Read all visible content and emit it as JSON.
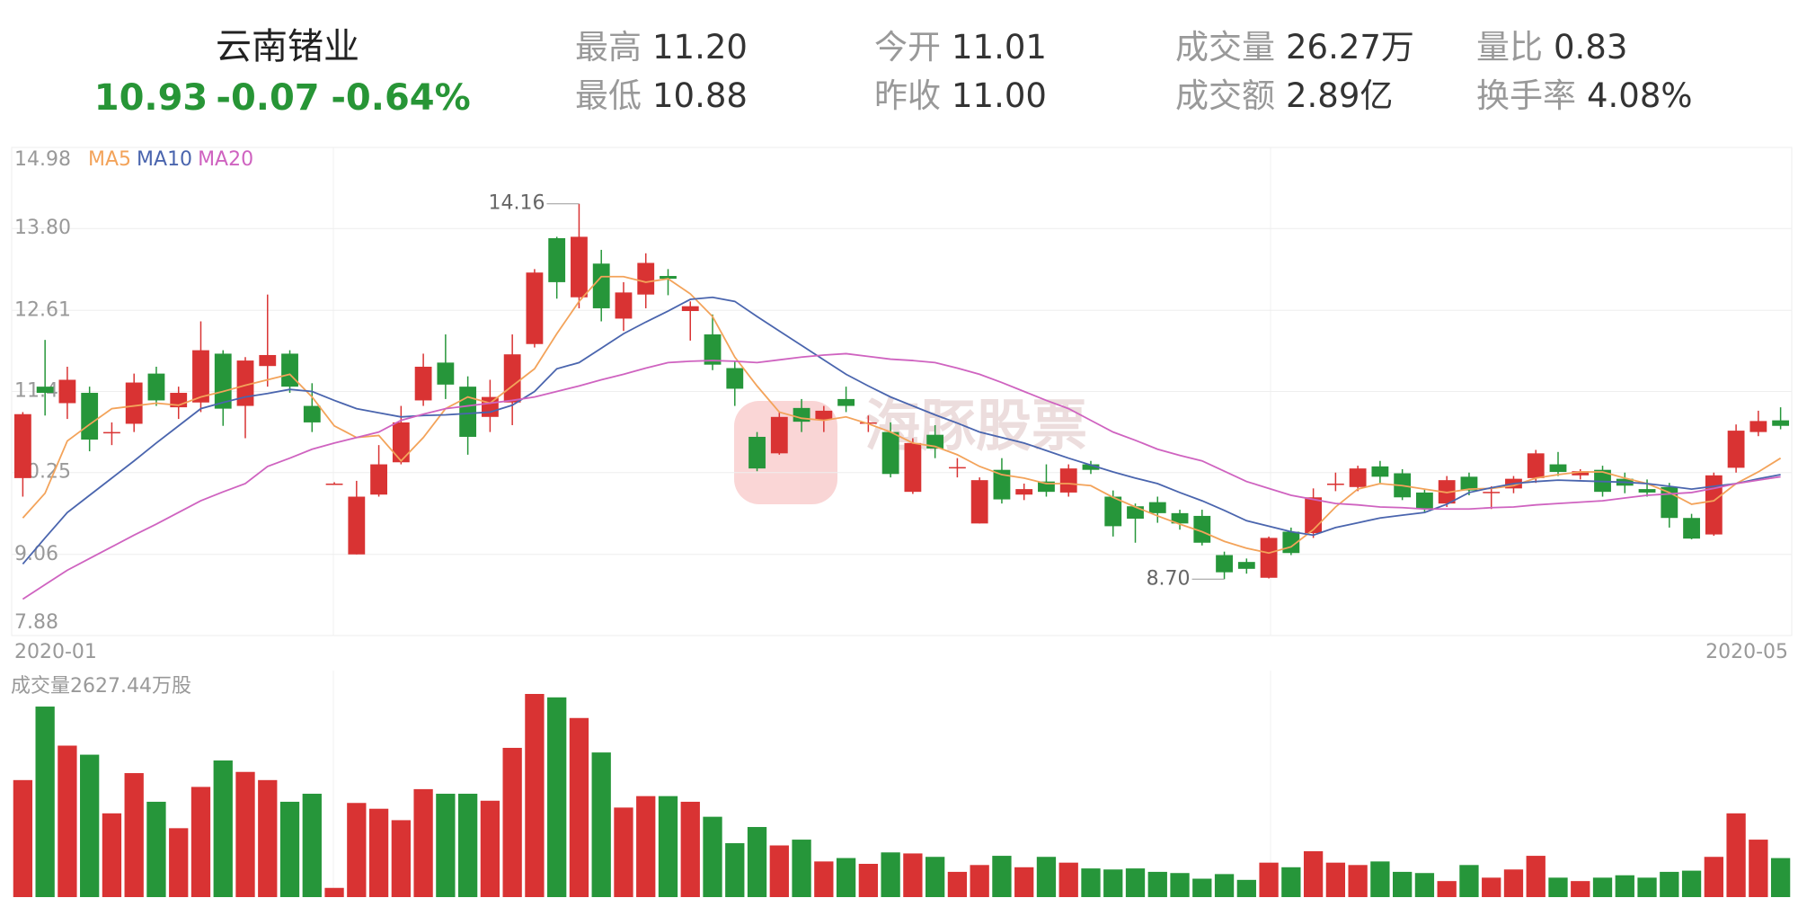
{
  "header": {
    "name": "云南锗业",
    "price": "10.93",
    "change": "-0.07",
    "change_pct": "-0.64%",
    "stats": [
      [
        {
          "label": "最高",
          "value": "11.20"
        },
        {
          "label": "今开",
          "value": "11.01"
        },
        {
          "label": "成交量",
          "value": "26.27万"
        },
        {
          "label": "量比",
          "value": "0.83"
        }
      ],
      [
        {
          "label": "最低",
          "value": "10.88"
        },
        {
          "label": "昨收",
          "value": "11.00"
        },
        {
          "label": "成交额",
          "value": "2.89亿"
        },
        {
          "label": "换手率",
          "value": "4.08%"
        }
      ]
    ]
  },
  "watermark": "海豚股票",
  "chart_data": {
    "type": "candlestick",
    "ylim": [
      7.88,
      14.98
    ],
    "yticks": [
      7.88,
      9.06,
      10.25,
      11.43,
      12.61,
      {
        "value": 13.8,
        "label": "13.80"
      },
      14.98
    ],
    "grid": true,
    "up_color": "#d93333",
    "down_color": "#26963a",
    "x_labels": [
      "2020-01",
      "2020-05"
    ],
    "high_label": "14.16",
    "low_label": "8.70",
    "volume_label": "成交量2627.44万股",
    "open": [
      10.17,
      11.5,
      11.26,
      11.41,
      10.84,
      10.96,
      11.69,
      11.2,
      11.27,
      11.98,
      11.22,
      11.8,
      11.98,
      11.22,
      10.09,
      9.06,
      9.93,
      10.4,
      11.3,
      11.85,
      11.5,
      11.06,
      11.27,
      12.12,
      13.66,
      12.8,
      13.29,
      12.49,
      12.84,
      13.11,
      12.6,
      12.26,
      11.77,
      10.77,
      10.53,
      11.19,
      11.02,
      11.32,
      10.98,
      10.84,
      9.97,
      10.8,
      10.32,
      9.51,
      10.29,
      9.93,
      10.12,
      9.96,
      10.37,
      9.9,
      9.76,
      9.82,
      9.66,
      9.62,
      9.05,
      8.95,
      8.72,
      9.39,
      9.37,
      10.07,
      10.04,
      10.34,
      10.24,
      9.96,
      9.8,
      10.19,
      9.96,
      10.02,
      10.17,
      10.37,
      10.21,
      10.29,
      10.16,
      10.01,
      10.04,
      9.59,
      9.35,
      10.32,
      10.84,
      11.01
    ],
    "high": [
      11.13,
      12.18,
      11.79,
      11.5,
      10.98,
      11.69,
      11.79,
      11.5,
      12.45,
      12.03,
      11.93,
      12.84,
      12.03,
      11.55,
      10.11,
      10.13,
      10.65,
      11.22,
      11.98,
      12.26,
      11.65,
      11.6,
      12.26,
      13.21,
      13.68,
      14.16,
      13.49,
      13.02,
      13.44,
      13.21,
      12.74,
      12.55,
      11.88,
      10.84,
      11.13,
      11.32,
      11.22,
      11.5,
      11.08,
      10.98,
      10.75,
      10.94,
      10.46,
      10.18,
      10.46,
      10.09,
      10.37,
      10.37,
      10.42,
      9.99,
      9.8,
      9.9,
      9.71,
      9.71,
      9.1,
      9.0,
      9.32,
      9.45,
      10.02,
      10.25,
      10.35,
      10.42,
      10.3,
      10.0,
      10.2,
      10.25,
      10.05,
      10.2,
      10.58,
      10.55,
      10.3,
      10.35,
      10.25,
      10.15,
      10.1,
      9.65,
      10.25,
      10.95,
      11.15,
      11.2
    ],
    "low": [
      9.9,
      11.08,
      11.03,
      10.56,
      10.65,
      10.84,
      11.22,
      11.03,
      11.13,
      10.93,
      10.75,
      11.5,
      11.41,
      10.84,
      10.07,
      9.06,
      9.9,
      10.37,
      11.22,
      11.32,
      10.51,
      10.84,
      10.94,
      12.07,
      12.78,
      12.64,
      12.45,
      12.31,
      12.64,
      12.83,
      12.17,
      11.74,
      11.22,
      10.27,
      10.51,
      10.84,
      10.84,
      11.13,
      10.84,
      10.18,
      9.94,
      10.46,
      10.18,
      9.51,
      9.8,
      9.85,
      9.9,
      9.9,
      10.23,
      9.32,
      9.23,
      9.52,
      9.42,
      9.19,
      8.7,
      8.78,
      8.71,
      9.05,
      9.3,
      9.98,
      9.98,
      10.1,
      9.85,
      9.68,
      9.75,
      9.92,
      9.72,
      9.95,
      10.1,
      10.2,
      10.15,
      9.9,
      9.95,
      9.9,
      9.45,
      9.28,
      9.33,
      10.25,
      10.78,
      10.88
    ],
    "close": [
      11.1,
      11.41,
      11.6,
      10.73,
      10.84,
      11.56,
      11.3,
      11.41,
      12.03,
      11.18,
      11.88,
      11.96,
      11.5,
      10.98,
      10.09,
      9.9,
      10.37,
      10.98,
      11.79,
      11.53,
      10.77,
      11.35,
      11.97,
      13.16,
      13.02,
      13.68,
      12.64,
      12.87,
      13.3,
      13.07,
      12.67,
      11.82,
      11.47,
      10.31,
      11.06,
      10.99,
      11.15,
      11.22,
      10.98,
      10.23,
      10.68,
      10.6,
      10.33,
      10.14,
      9.86,
      10.01,
      9.97,
      10.31,
      10.29,
      9.47,
      9.58,
      9.66,
      9.51,
      9.23,
      8.8,
      8.85,
      9.3,
      9.08,
      9.89,
      10.09,
      10.31,
      10.19,
      9.89,
      9.72,
      10.14,
      9.99,
      9.97,
      10.16,
      10.53,
      10.26,
      10.27,
      9.97,
      10.06,
      9.96,
      9.59,
      9.29,
      10.21,
      10.86,
      11.0,
      10.93
    ],
    "volume": [
      7880,
      12830,
      10200,
      9590,
      5640,
      8350,
      6420,
      4640,
      7420,
      9200,
      8430,
      7880,
      6420,
      6960,
      620,
      6340,
      5950,
      5180,
      7270,
      6960,
      6960,
      6490,
      10050,
      13680,
      13450,
      12060,
      9740,
      6030,
      6800,
      6800,
      6420,
      5410,
      3630,
      4720,
      3480,
      3870,
      2400,
      2630,
      2240,
      3010,
      2940,
      2710,
      1700,
      2160,
      2780,
      2010,
      2710,
      2320,
      1930,
      1860,
      1930,
      1700,
      1620,
      1240,
      1550,
      1160,
      2320,
      2010,
      3090,
      2320,
      2160,
      2400,
      1700,
      1620,
      1080,
      2160,
      1310,
      1860,
      2780,
      1310,
      1080,
      1310,
      1470,
      1310,
      1700,
      1780,
      2710,
      5640,
      3870,
      2627.44
    ],
    "ma": [
      {
        "name": "MA5",
        "color": "#f3a35a",
        "values": [
          9.59,
          9.95,
          10.71,
          10.95,
          11.18,
          11.22,
          11.26,
          11.23,
          11.35,
          11.43,
          11.52,
          11.6,
          11.68,
          11.35,
          10.93,
          10.76,
          10.79,
          10.42,
          10.76,
          11.18,
          11.35,
          11.26,
          11.51,
          11.76,
          12.27,
          12.74,
          13.1,
          13.1,
          13.02,
          13.07,
          12.85,
          12.52,
          11.93,
          11.51,
          11.13,
          11.04,
          11.01,
          11.06,
          10.96,
          10.84,
          10.68,
          10.63,
          10.51,
          10.34,
          10.22,
          10.17,
          10.09,
          10.09,
          10.06,
          9.89,
          9.75,
          9.62,
          9.5,
          9.39,
          9.25,
          9.15,
          9.08,
          9.17,
          9.42,
          9.75,
          10.01,
          10.09,
          10.06,
          10.01,
          9.96,
          10.01,
          10.02,
          10.06,
          10.17,
          10.22,
          10.26,
          10.26,
          10.17,
          10.09,
          9.96,
          9.79,
          9.84,
          10.09,
          10.26,
          10.46
        ]
      },
      {
        "name": "MA10",
        "color": "#4a65ae",
        "values": [
          8.92,
          9.3,
          9.67,
          9.92,
          10.17,
          10.42,
          10.68,
          10.93,
          11.18,
          11.27,
          11.35,
          11.4,
          11.46,
          11.43,
          11.3,
          11.18,
          11.12,
          11.06,
          11.08,
          11.09,
          11.11,
          11.13,
          11.23,
          11.43,
          11.76,
          11.85,
          12.06,
          12.27,
          12.44,
          12.6,
          12.77,
          12.8,
          12.74,
          12.52,
          12.31,
          12.1,
          11.89,
          11.68,
          11.51,
          11.35,
          11.22,
          11.09,
          10.97,
          10.84,
          10.76,
          10.68,
          10.57,
          10.46,
          10.36,
          10.26,
          10.17,
          10.09,
          9.96,
          9.84,
          9.7,
          9.55,
          9.47,
          9.39,
          9.34,
          9.45,
          9.52,
          9.59,
          9.63,
          9.67,
          9.79,
          9.96,
          10.03,
          10.09,
          10.12,
          10.14,
          10.13,
          10.12,
          10.11,
          10.09,
          10.05,
          10.01,
          10.05,
          10.09,
          10.16,
          10.22
        ]
      },
      {
        "name": "MA20",
        "color": "#cf63c0",
        "values": [
          8.41,
          8.62,
          8.83,
          9.0,
          9.17,
          9.34,
          9.5,
          9.67,
          9.84,
          9.97,
          10.09,
          10.34,
          10.46,
          10.59,
          10.68,
          10.76,
          10.84,
          11.01,
          11.1,
          11.18,
          11.22,
          11.26,
          11.3,
          11.35,
          11.43,
          11.51,
          11.6,
          11.68,
          11.77,
          11.85,
          11.87,
          11.88,
          11.87,
          11.85,
          11.89,
          11.93,
          11.96,
          11.98,
          11.94,
          11.9,
          11.88,
          11.85,
          11.77,
          11.68,
          11.56,
          11.43,
          11.3,
          11.18,
          11.01,
          10.84,
          10.72,
          10.59,
          10.5,
          10.42,
          10.27,
          10.12,
          10.02,
          9.92,
          9.86,
          9.8,
          9.78,
          9.75,
          9.74,
          9.72,
          9.72,
          9.72,
          9.74,
          9.75,
          9.78,
          9.8,
          9.82,
          9.84,
          9.88,
          9.92,
          9.94,
          9.96,
          10.02,
          10.09,
          10.14,
          10.19
        ]
      }
    ]
  }
}
